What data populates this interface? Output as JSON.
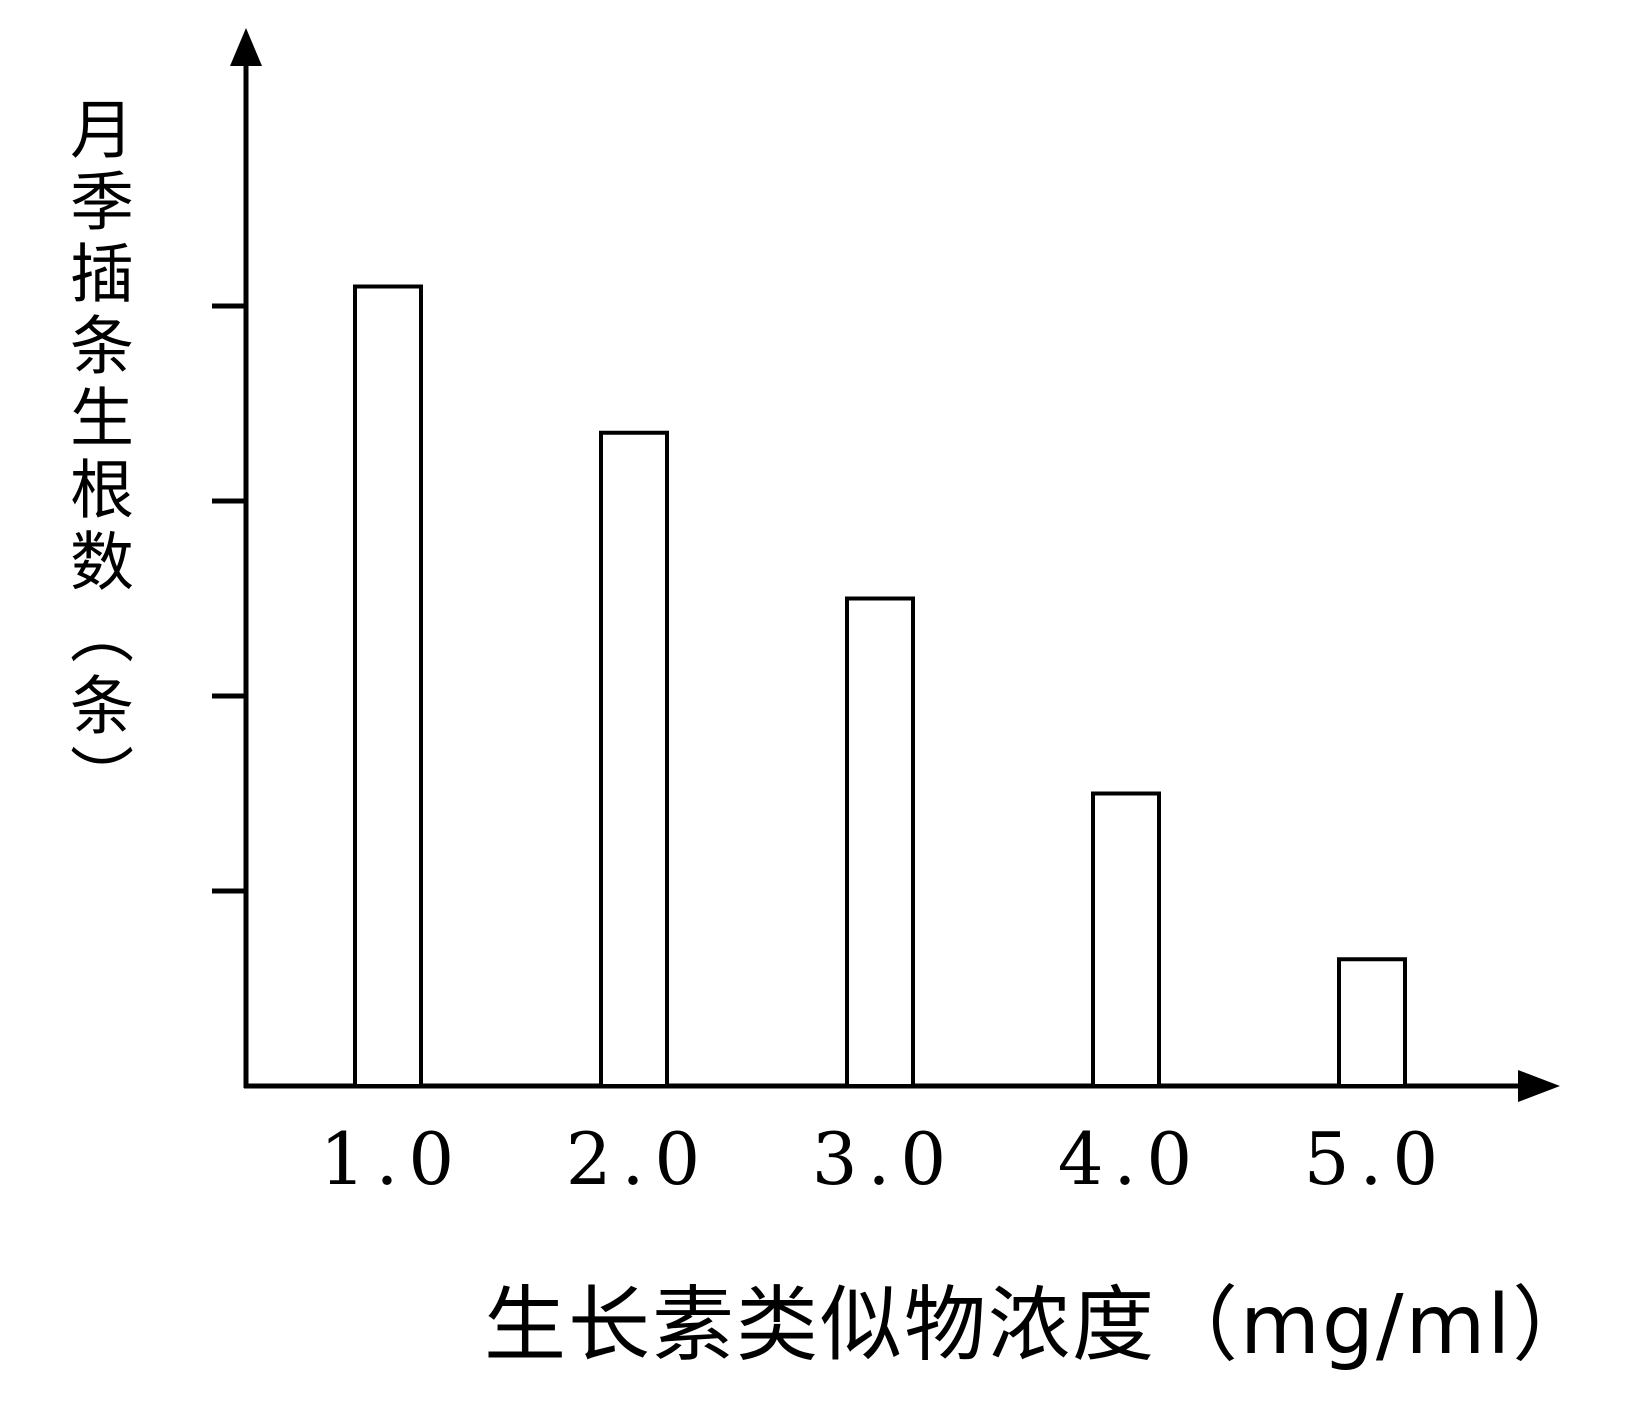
{
  "chart_data": {
    "type": "bar",
    "title": "",
    "xlabel": "生长素类似物浓度（mg/ml）",
    "ylabel": "月季插条生根数（条）",
    "categories": [
      "1.0",
      "2.0",
      "3.0",
      "4.0",
      "5.0"
    ],
    "values": [
      4.1,
      3.35,
      2.5,
      1.5,
      0.65
    ],
    "ylim": [
      0,
      5
    ],
    "yticks": [
      1,
      2,
      3,
      4
    ],
    "ytick_labels_shown": false,
    "grid": false,
    "legend": "none",
    "bar_fill": "#ffffff",
    "bar_stroke": "#000000"
  }
}
